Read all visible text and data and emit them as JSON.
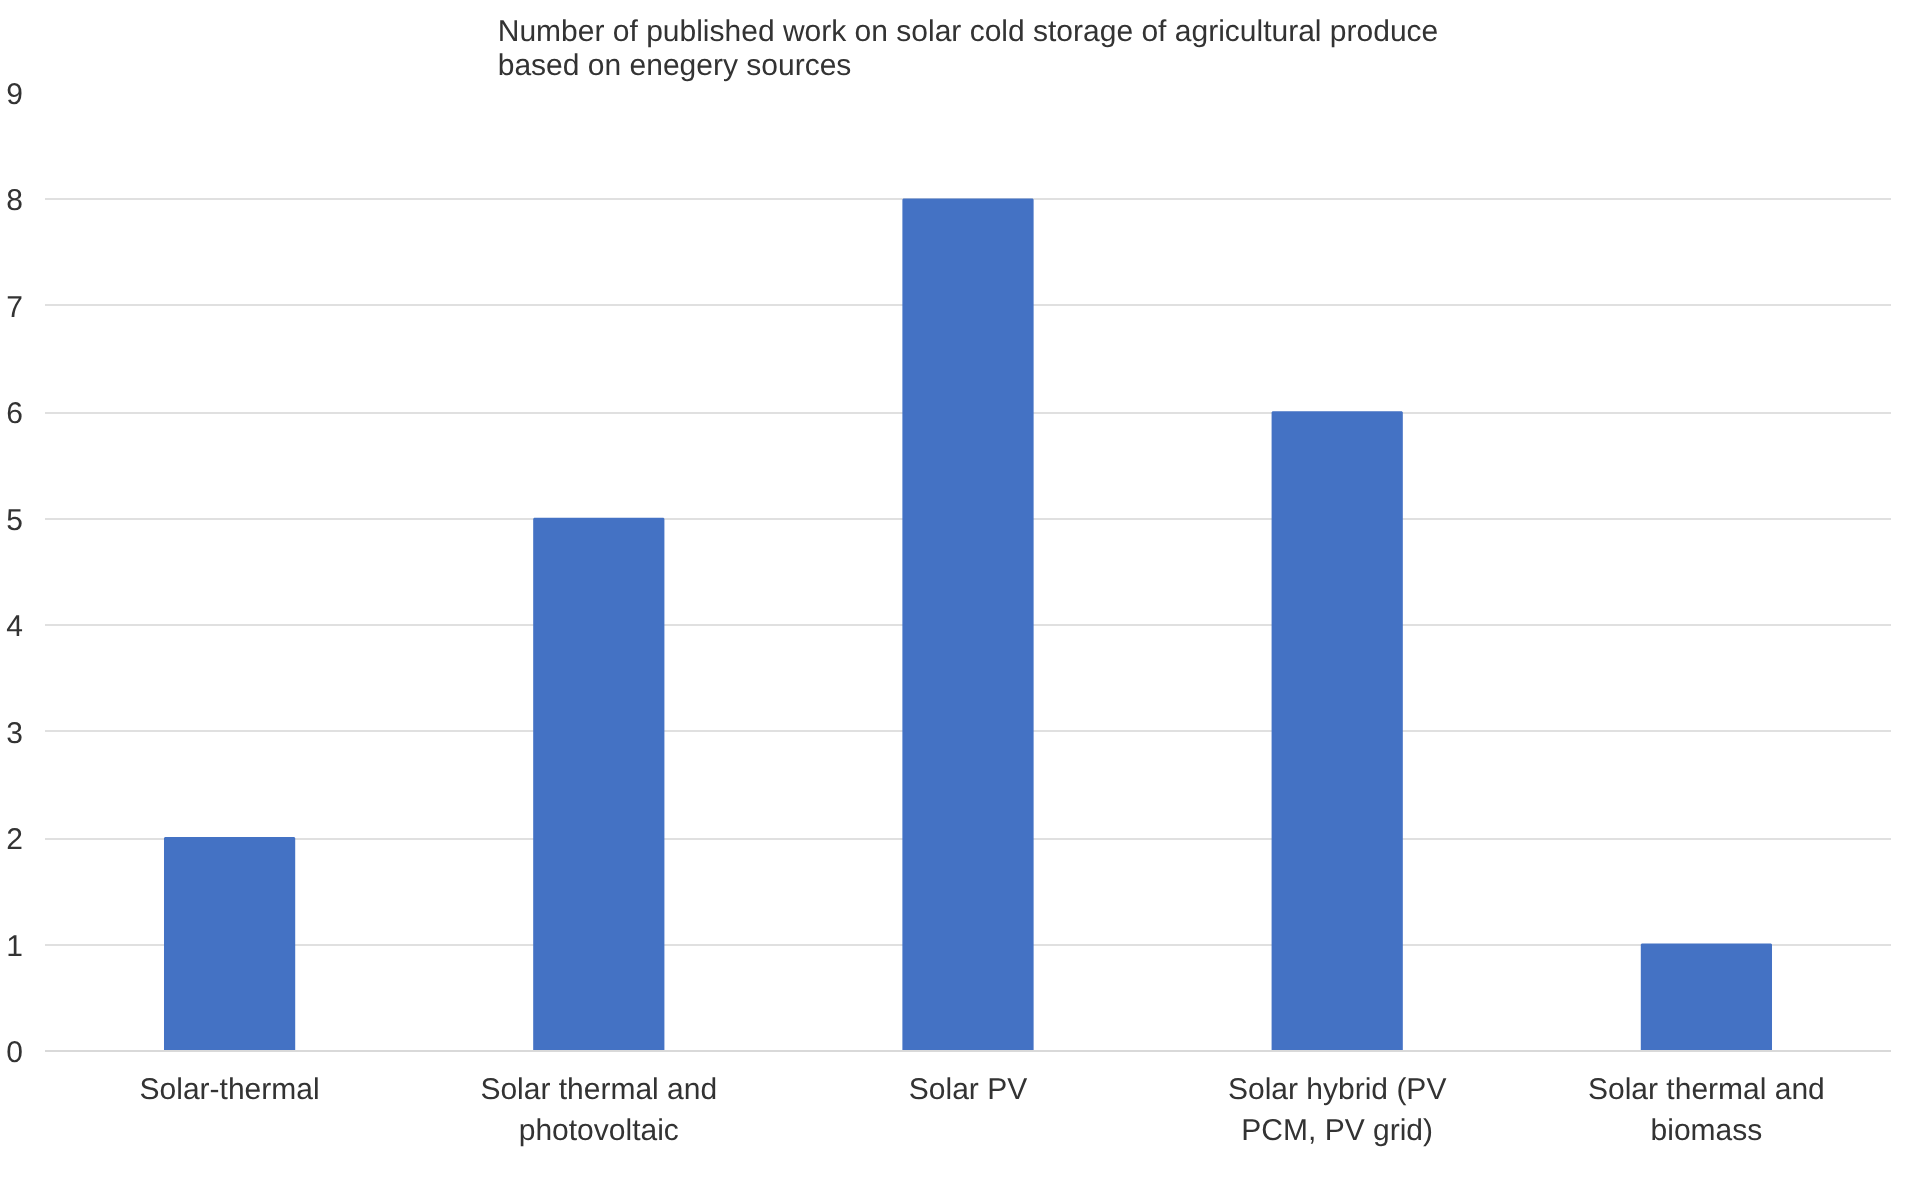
{
  "chart_data": {
    "type": "bar",
    "title": "Number of published work on solar cold storage of agricultural produce based on enegery sources",
    "categories": [
      "Solar-thermal",
      "Solar thermal and photovoltaic",
      "Solar PV",
      "Solar hybrid (PV PCM, PV grid)",
      "Solar thermal and biomass"
    ],
    "values": [
      2,
      5,
      8,
      6,
      1
    ],
    "color": "#4472c4",
    "ylim": [
      0,
      9
    ],
    "yticks": [
      0,
      1,
      2,
      3,
      4,
      5,
      6,
      7,
      8,
      9
    ],
    "grid": "y"
  }
}
